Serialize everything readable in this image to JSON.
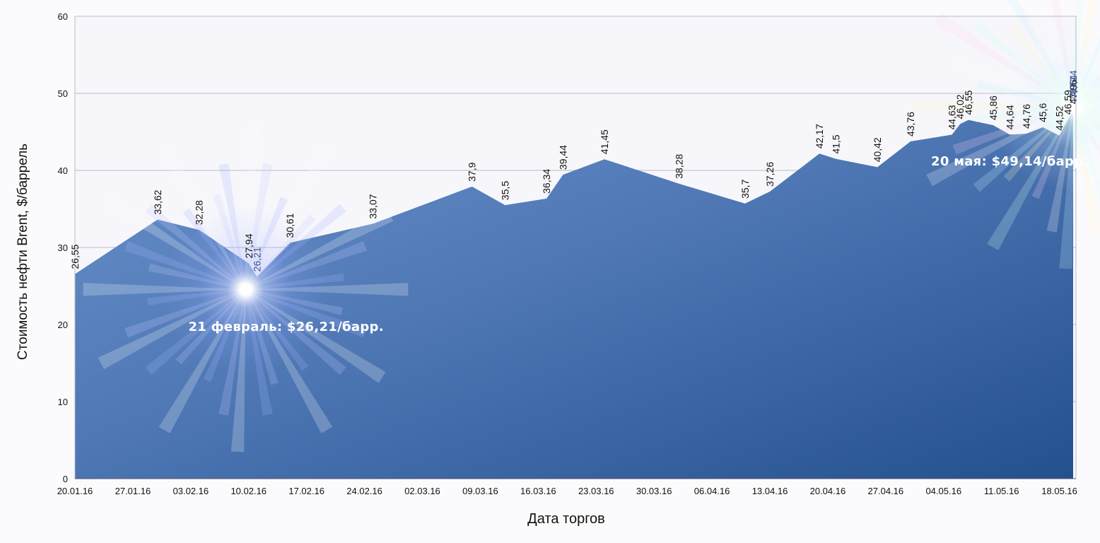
{
  "chart_data": {
    "type": "area",
    "title": "",
    "xlabel": "Дата торгов",
    "ylabel": "Стоимость нефти Brent, $/баррель",
    "ylim": [
      0,
      60
    ],
    "yticks": [
      "0",
      "10",
      "20",
      "30",
      "40",
      "50",
      "60"
    ],
    "xlim": [
      "2016-01-20",
      "2016-05-20"
    ],
    "xtick_labels": [
      "20.01.16",
      "27.01.16",
      "03.02.16",
      "10.02.16",
      "17.02.16",
      "24.02.16",
      "02.03.16",
      "09.03.16",
      "16.03.16",
      "23.03.16",
      "30.03.16",
      "06.04.16",
      "13.04.16",
      "20.04.16",
      "27.04.16",
      "04.05.16",
      "11.05.16",
      "18.05.16"
    ],
    "xtick_dates": [
      "2016-01-20",
      "2016-01-27",
      "2016-02-03",
      "2016-02-10",
      "2016-02-17",
      "2016-02-24",
      "2016-03-02",
      "2016-03-09",
      "2016-03-16",
      "2016-03-23",
      "2016-03-30",
      "2016-04-06",
      "2016-04-13",
      "2016-04-20",
      "2016-04-27",
      "2016-05-04",
      "2016-05-11",
      "2016-05-18"
    ],
    "grid": true,
    "legend": "none",
    "fill_color": "#5b84bd",
    "series": [
      {
        "points": [
          {
            "x": "2016-01-20",
            "y": 26.55,
            "label": "26,55"
          },
          {
            "x": "2016-01-30",
            "y": 33.62,
            "label": "33,62"
          },
          {
            "x": "2016-02-04",
            "y": 32.28,
            "label": "32,28"
          },
          {
            "x": "2016-02-10",
            "y": 27.94,
            "label": "27,94"
          },
          {
            "x": "2016-02-11",
            "y": 26.21,
            "label": "26,21"
          },
          {
            "x": "2016-02-15",
            "y": 30.61,
            "label": "30,61"
          },
          {
            "x": "2016-02-25",
            "y": 33.07,
            "label": "33,07"
          },
          {
            "x": "2016-03-08",
            "y": 37.9,
            "label": "37,9"
          },
          {
            "x": "2016-03-12",
            "y": 35.5,
            "label": "35,5"
          },
          {
            "x": "2016-03-17",
            "y": 36.34,
            "label": "36,34"
          },
          {
            "x": "2016-03-19",
            "y": 39.44,
            "label": "39,44"
          },
          {
            "x": "2016-03-24",
            "y": 41.45,
            "label": "41,45"
          },
          {
            "x": "2016-04-02",
            "y": 38.28,
            "label": "38,28"
          },
          {
            "x": "2016-04-10",
            "y": 35.7,
            "label": "35,7"
          },
          {
            "x": "2016-04-13",
            "y": 37.26,
            "label": "37,26"
          },
          {
            "x": "2016-04-19",
            "y": 42.17,
            "label": "42,17"
          },
          {
            "x": "2016-04-21",
            "y": 41.5,
            "label": "41,5"
          },
          {
            "x": "2016-04-26",
            "y": 40.42,
            "label": "40,42"
          },
          {
            "x": "2016-04-30",
            "y": 43.76,
            "label": "43,76"
          },
          {
            "x": "2016-05-05",
            "y": 44.63,
            "label": "44,63"
          },
          {
            "x": "2016-05-06",
            "y": 46.02,
            "label": "46,02"
          },
          {
            "x": "2016-05-07",
            "y": 46.55,
            "label": "46,55"
          },
          {
            "x": "2016-05-10",
            "y": 45.86,
            "label": "45,86"
          },
          {
            "x": "2016-05-12",
            "y": 44.64,
            "label": "44,64"
          },
          {
            "x": "2016-05-14",
            "y": 44.76,
            "label": "44,76"
          },
          {
            "x": "2016-05-16",
            "y": 45.6,
            "label": "45,6"
          },
          {
            "x": "2016-05-18",
            "y": 44.52,
            "label": "44,52"
          },
          {
            "x": "2016-05-19",
            "y": 46.59,
            "label": "46,59"
          },
          {
            "x": "2016-05-22",
            "y": 47.96,
            "label": "47,96"
          },
          {
            "x": "2016-05-24",
            "y": 48.54,
            "label": "48,54"
          },
          {
            "x": "2016-05-26",
            "y": 49.14,
            "label": "49,14"
          }
        ]
      }
    ],
    "annotations": [
      {
        "text": "21 февраль: $26,21/барр.",
        "x": "2016-02-11",
        "y": 26.21
      },
      {
        "text": "20 мая: $49,14/барр.",
        "x": "2016-05-26",
        "y": 49.14
      }
    ]
  }
}
